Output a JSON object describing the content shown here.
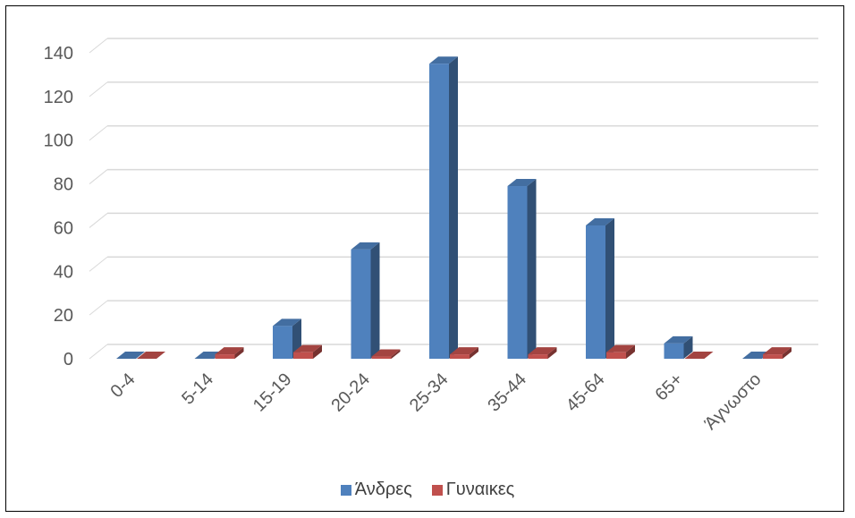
{
  "chart_data": {
    "type": "bar",
    "categories": [
      "0-4",
      "5-14",
      "15-19",
      "20-24",
      "25-34",
      "35-44",
      "45-64",
      "65+",
      "Άγνωστο"
    ],
    "series": [
      {
        "name": "Άνδρες",
        "values": [
          0,
          0,
          15,
          50,
          135,
          79,
          61,
          7,
          0
        ],
        "color": "#4F81BD"
      },
      {
        "name": "Γυναικες",
        "values": [
          0,
          2,
          3,
          1,
          2,
          2,
          3,
          0,
          2
        ],
        "color": "#C0504D"
      }
    ],
    "yticks": [
      "0",
      "20",
      "40",
      "60",
      "80",
      "100",
      "120",
      "140"
    ],
    "ylim": [
      0,
      140
    ],
    "grid": true,
    "legend_position": "bottom",
    "style": "3d-clustered-column"
  }
}
